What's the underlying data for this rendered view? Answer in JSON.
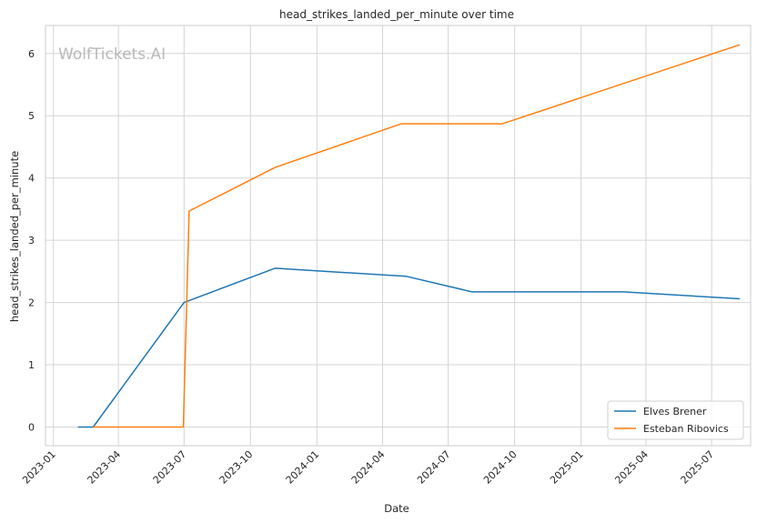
{
  "chart_data": {
    "type": "line",
    "title": "head_strikes_landed_per_minute over time",
    "xlabel": "Date",
    "ylabel": "head_strikes_landed_per_minute",
    "watermark": "WolfTickets.AI",
    "x_ticks": [
      "2023-01",
      "2023-04",
      "2023-07",
      "2023-10",
      "2024-01",
      "2024-04",
      "2024-07",
      "2024-10",
      "2025-01",
      "2025-04",
      "2025-07"
    ],
    "y_ticks": [
      "0",
      "1",
      "2",
      "3",
      "4",
      "5",
      "6"
    ],
    "ylim": [
      -0.3,
      6.45
    ],
    "xlim": [
      "2022-12-21",
      "2025-08-24"
    ],
    "grid": true,
    "legend_position": "bottom-right",
    "series": [
      {
        "name": "Elves Brener",
        "color": "#1f77b4",
        "points": [
          {
            "x": "2023-02-04",
            "y": 0.0
          },
          {
            "x": "2023-02-25",
            "y": 0.0
          },
          {
            "x": "2023-07-01",
            "y": 2.0
          },
          {
            "x": "2023-11-04",
            "y": 2.55
          },
          {
            "x": "2024-05-04",
            "y": 2.42
          },
          {
            "x": "2024-08-03",
            "y": 2.17
          },
          {
            "x": "2025-03-01",
            "y": 2.17
          },
          {
            "x": "2025-08-09",
            "y": 2.06
          }
        ]
      },
      {
        "name": "Esteban Ribovics",
        "color": "#ff7f0e",
        "points": [
          {
            "x": "2023-02-25",
            "y": 0.0
          },
          {
            "x": "2023-06-30",
            "y": 0.0
          },
          {
            "x": "2023-07-08",
            "y": 3.47
          },
          {
            "x": "2023-11-04",
            "y": 4.17
          },
          {
            "x": "2024-04-27",
            "y": 4.87
          },
          {
            "x": "2024-09-14",
            "y": 4.87
          },
          {
            "x": "2025-08-09",
            "y": 6.14
          }
        ]
      }
    ]
  }
}
